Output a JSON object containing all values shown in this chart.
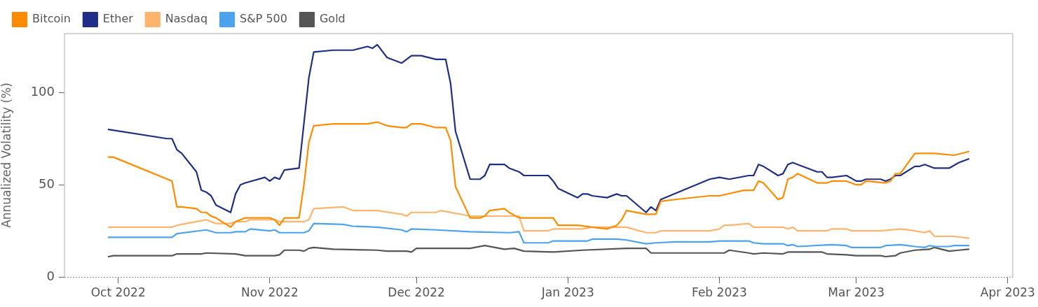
{
  "chart_data": {
    "type": "line",
    "ylabel": "Annualized Volatility (%)",
    "legend": "top left",
    "marker": "none",
    "line_style": "solid",
    "xlim": [
      "2022-09-20",
      "2023-04-02"
    ],
    "xticks": [
      {
        "value": "2022-10-01",
        "label": "Oct 2022"
      },
      {
        "value": "2022-11-01",
        "label": "Nov 2022"
      },
      {
        "value": "2022-12-01",
        "label": "Dec 2022"
      },
      {
        "value": "2023-01-01",
        "label": "Jan 2023"
      },
      {
        "value": "2023-02-01",
        "label": "Feb 2023"
      },
      {
        "value": "2023-03-01",
        "label": "Mar 2023"
      },
      {
        "value": "2023-04-01",
        "label": "Apr 2023"
      }
    ],
    "ylim": [
      0,
      132
    ],
    "yticks": [
      0,
      50,
      100
    ],
    "series": [
      {
        "name": "Bitcoin",
        "color": "#ff8c00",
        "x": [
          "2022-09-29",
          "2022-09-30",
          "2022-10-12",
          "2022-10-13",
          "2022-10-14",
          "2022-10-17",
          "2022-10-18",
          "2022-10-19",
          "2022-10-20",
          "2022-10-21",
          "2022-10-24",
          "2022-10-25",
          "2022-10-26",
          "2022-10-27",
          "2022-10-31",
          "2022-11-01",
          "2022-11-02",
          "2022-11-03",
          "2022-11-04",
          "2022-11-07",
          "2022-11-08",
          "2022-11-09",
          "2022-11-10",
          "2022-11-14",
          "2022-11-18",
          "2022-11-21",
          "2022-11-23",
          "2022-11-25",
          "2022-11-28",
          "2022-11-29",
          "2022-11-30",
          "2022-12-02",
          "2022-12-05",
          "2022-12-07",
          "2022-12-08",
          "2022-12-09",
          "2022-12-12",
          "2022-12-14",
          "2022-12-15",
          "2022-12-16",
          "2022-12-19",
          "2022-12-20",
          "2022-12-22",
          "2022-12-29",
          "2022-12-30",
          "2023-01-03",
          "2023-01-06",
          "2023-01-09",
          "2023-01-11",
          "2023-01-12",
          "2023-01-13",
          "2023-01-17",
          "2023-01-19",
          "2023-01-20",
          "2023-01-23",
          "2023-01-30",
          "2023-02-01",
          "2023-02-06",
          "2023-02-08",
          "2023-02-09",
          "2023-02-10",
          "2023-02-13",
          "2023-02-14",
          "2023-02-15",
          "2023-02-16",
          "2023-02-17",
          "2023-02-21",
          "2023-02-23",
          "2023-02-24",
          "2023-02-27",
          "2023-03-01",
          "2023-03-02",
          "2023-03-03",
          "2023-03-07",
          "2023-03-08",
          "2023-03-09",
          "2023-03-10",
          "2023-03-13",
          "2023-03-16",
          "2023-03-17",
          "2023-03-21",
          "2023-03-24"
        ],
        "values": [
          65,
          65,
          52,
          38,
          38,
          37,
          35,
          35,
          33,
          32,
          27,
          30,
          31,
          32,
          32,
          32,
          31,
          28,
          32,
          32,
          50,
          73,
          82,
          83,
          83,
          83,
          84,
          82,
          81,
          81,
          83,
          83,
          81,
          81,
          74,
          49,
          32,
          32,
          33,
          36,
          37,
          35,
          32,
          32,
          28,
          28,
          27,
          26,
          28,
          31,
          36,
          34,
          34,
          41,
          42,
          44,
          44,
          47,
          47,
          52,
          51,
          42,
          43,
          53,
          54,
          56,
          51,
          51,
          52,
          52,
          50,
          50,
          52,
          51,
          52,
          56,
          56,
          67,
          67,
          67,
          66,
          68
        ]
      },
      {
        "name": "Ether",
        "color": "#1f2f86",
        "x": [
          "2022-09-29",
          "2022-10-11",
          "2022-10-12",
          "2022-10-13",
          "2022-10-14",
          "2022-10-17",
          "2022-10-18",
          "2022-10-19",
          "2022-10-20",
          "2022-10-21",
          "2022-10-24",
          "2022-10-25",
          "2022-10-26",
          "2022-10-27",
          "2022-10-31",
          "2022-11-01",
          "2022-11-02",
          "2022-11-03",
          "2022-11-04",
          "2022-11-07",
          "2022-11-09",
          "2022-11-10",
          "2022-11-14",
          "2022-11-18",
          "2022-11-21",
          "2022-11-22",
          "2022-11-23",
          "2022-11-25",
          "2022-11-28",
          "2022-11-29",
          "2022-11-30",
          "2022-12-02",
          "2022-12-05",
          "2022-12-07",
          "2022-12-08",
          "2022-12-09",
          "2022-12-12",
          "2022-12-14",
          "2022-12-15",
          "2022-12-16",
          "2022-12-19",
          "2022-12-20",
          "2022-12-22",
          "2022-12-23",
          "2022-12-28",
          "2022-12-29",
          "2022-12-30",
          "2023-01-03",
          "2023-01-04",
          "2023-01-05",
          "2023-01-06",
          "2023-01-09",
          "2023-01-11",
          "2023-01-12",
          "2023-01-13",
          "2023-01-17",
          "2023-01-18",
          "2023-01-19",
          "2023-01-20",
          "2023-01-30",
          "2023-02-01",
          "2023-02-03",
          "2023-02-07",
          "2023-02-08",
          "2023-02-09",
          "2023-02-10",
          "2023-02-13",
          "2023-02-14",
          "2023-02-15",
          "2023-02-16",
          "2023-02-17",
          "2023-02-21",
          "2023-02-22",
          "2023-02-23",
          "2023-02-24",
          "2023-02-27",
          "2023-03-01",
          "2023-03-02",
          "2023-03-03",
          "2023-03-06",
          "2023-03-07",
          "2023-03-08",
          "2023-03-09",
          "2023-03-10",
          "2023-03-13",
          "2023-03-14",
          "2023-03-15",
          "2023-03-17",
          "2023-03-20",
          "2023-03-22",
          "2023-03-24"
        ],
        "values": [
          80,
          75,
          75,
          69,
          67,
          57,
          47,
          46,
          44,
          39,
          35,
          45,
          50,
          51,
          54,
          52,
          54,
          53,
          58,
          59,
          108,
          122,
          123,
          123,
          125,
          124,
          126,
          119,
          116,
          118,
          120,
          120,
          118,
          118,
          105,
          79,
          53,
          53,
          55,
          61,
          61,
          59,
          57,
          55,
          55,
          52,
          48,
          43,
          45,
          45,
          44,
          43,
          45,
          44,
          44,
          35,
          38,
          36,
          42,
          53,
          54,
          53,
          55,
          55,
          61,
          60,
          55,
          56,
          61,
          62,
          61,
          57,
          57,
          54,
          54,
          55,
          52,
          52,
          53,
          53,
          52,
          53,
          55,
          55,
          60,
          60,
          61,
          59,
          59,
          62,
          64
        ]
      },
      {
        "name": "Nasdaq",
        "color": "#ffb46e",
        "x": [
          "2022-09-29",
          "2022-10-12",
          "2022-10-13",
          "2022-10-17",
          "2022-10-19",
          "2022-10-21",
          "2022-10-24",
          "2022-10-25",
          "2022-10-27",
          "2022-10-28",
          "2022-11-02",
          "2022-11-03",
          "2022-11-08",
          "2022-11-09",
          "2022-11-10",
          "2022-11-16",
          "2022-11-18",
          "2022-11-23",
          "2022-11-28",
          "2022-11-29",
          "2022-11-30",
          "2022-12-05",
          "2022-12-06",
          "2022-12-12",
          "2022-12-15",
          "2022-12-22",
          "2022-12-23",
          "2022-12-28",
          "2022-12-29",
          "2023-01-04",
          "2023-01-06",
          "2023-01-13",
          "2023-01-17",
          "2023-01-19",
          "2023-01-20",
          "2023-01-30",
          "2023-02-01",
          "2023-02-02",
          "2023-02-03",
          "2023-02-07",
          "2023-02-08",
          "2023-02-10",
          "2023-02-14",
          "2023-02-15",
          "2023-02-16",
          "2023-02-17",
          "2023-02-23",
          "2023-02-24",
          "2023-02-27",
          "2023-02-28",
          "2023-03-06",
          "2023-03-10",
          "2023-03-13",
          "2023-03-15",
          "2023-03-16",
          "2023-03-17",
          "2023-03-20",
          "2023-03-21",
          "2023-03-24"
        ],
        "values": [
          27,
          27,
          28,
          30,
          31,
          29,
          29,
          30,
          30,
          31,
          31,
          30,
          30,
          31,
          37,
          38,
          36,
          36,
          34,
          33,
          35,
          35,
          36,
          33,
          33,
          33,
          25,
          25,
          26,
          26,
          27,
          27,
          24,
          24,
          25,
          25,
          26,
          28,
          28,
          29,
          27,
          27,
          27,
          26,
          27,
          25,
          25,
          26,
          26,
          25,
          25,
          26,
          25,
          24,
          25,
          22,
          22,
          22,
          21
        ]
      },
      {
        "name": "S&P 500",
        "color": "#4ba3f0",
        "x": [
          "2022-09-29",
          "2022-10-12",
          "2022-10-13",
          "2022-10-19",
          "2022-10-21",
          "2022-10-24",
          "2022-10-25",
          "2022-10-27",
          "2022-10-28",
          "2022-11-01",
          "2022-11-02",
          "2022-11-03",
          "2022-11-04",
          "2022-11-08",
          "2022-11-09",
          "2022-11-10",
          "2022-11-16",
          "2022-11-18",
          "2022-11-23",
          "2022-11-28",
          "2022-11-29",
          "2022-11-30",
          "2022-12-05",
          "2022-12-12",
          "2022-12-20",
          "2022-12-22",
          "2022-12-23",
          "2022-12-28",
          "2022-12-29",
          "2023-01-05",
          "2023-01-06",
          "2023-01-11",
          "2023-01-13",
          "2023-01-17",
          "2023-01-19",
          "2023-01-23",
          "2023-01-30",
          "2023-02-01",
          "2023-02-07",
          "2023-02-08",
          "2023-02-10",
          "2023-02-14",
          "2023-02-15",
          "2023-02-16",
          "2023-02-17",
          "2023-02-24",
          "2023-02-27",
          "2023-02-28",
          "2023-03-06",
          "2023-03-07",
          "2023-03-10",
          "2023-03-13",
          "2023-03-15",
          "2023-03-16",
          "2023-03-17",
          "2023-03-20",
          "2023-03-21",
          "2023-03-24"
        ],
        "values": [
          21.5,
          21.5,
          23.5,
          25.5,
          24,
          24,
          24.5,
          24.5,
          26,
          25,
          25.5,
          24,
          24,
          24,
          25,
          29,
          28.5,
          27.5,
          27,
          25.5,
          24.5,
          26,
          25.5,
          24.5,
          24,
          24.5,
          18.5,
          18.5,
          19.5,
          19.5,
          20.5,
          20.5,
          20,
          18,
          18.5,
          19,
          19,
          19.5,
          19.5,
          18.5,
          18,
          18,
          17,
          17.5,
          16.5,
          17.5,
          17,
          16,
          16,
          17,
          17.5,
          16.5,
          16,
          17,
          16.5,
          16.5,
          17,
          17
        ]
      },
      {
        "name": "Gold",
        "color": "#555555",
        "x": [
          "2022-09-29",
          "2022-09-30",
          "2022-10-12",
          "2022-10-13",
          "2022-10-18",
          "2022-10-19",
          "2022-10-25",
          "2022-10-27",
          "2022-11-02",
          "2022-11-03",
          "2022-11-04",
          "2022-11-07",
          "2022-11-08",
          "2022-11-09",
          "2022-11-10",
          "2022-11-14",
          "2022-11-23",
          "2022-11-25",
          "2022-11-29",
          "2022-11-30",
          "2022-12-01",
          "2022-12-12",
          "2022-12-15",
          "2022-12-19",
          "2022-12-21",
          "2022-12-23",
          "2022-12-29",
          "2023-01-04",
          "2023-01-13",
          "2023-01-17",
          "2023-01-18",
          "2023-01-19",
          "2023-02-02",
          "2023-02-03",
          "2023-02-07",
          "2023-02-08",
          "2023-02-10",
          "2023-02-14",
          "2023-02-15",
          "2023-02-22",
          "2023-02-23",
          "2023-02-27",
          "2023-03-01",
          "2023-03-06",
          "2023-03-07",
          "2023-03-09",
          "2023-03-10",
          "2023-03-13",
          "2023-03-16",
          "2023-03-17",
          "2023-03-20",
          "2023-03-22",
          "2023-03-24"
        ],
        "values": [
          11,
          11.5,
          11.5,
          12.5,
          12.5,
          13,
          12.5,
          11.5,
          11.5,
          12,
          14.5,
          14.5,
          14,
          15.5,
          16,
          15,
          14.5,
          14,
          14,
          13.5,
          15.5,
          15.5,
          17,
          15,
          15.5,
          14,
          13.5,
          14.5,
          15.5,
          15.5,
          13,
          13,
          13,
          14.5,
          13,
          12.5,
          13,
          12.5,
          13.5,
          13.5,
          12.5,
          12,
          11.5,
          11.5,
          11,
          11.5,
          13,
          14.5,
          15,
          16,
          14,
          14.5,
          15
        ]
      }
    ]
  }
}
